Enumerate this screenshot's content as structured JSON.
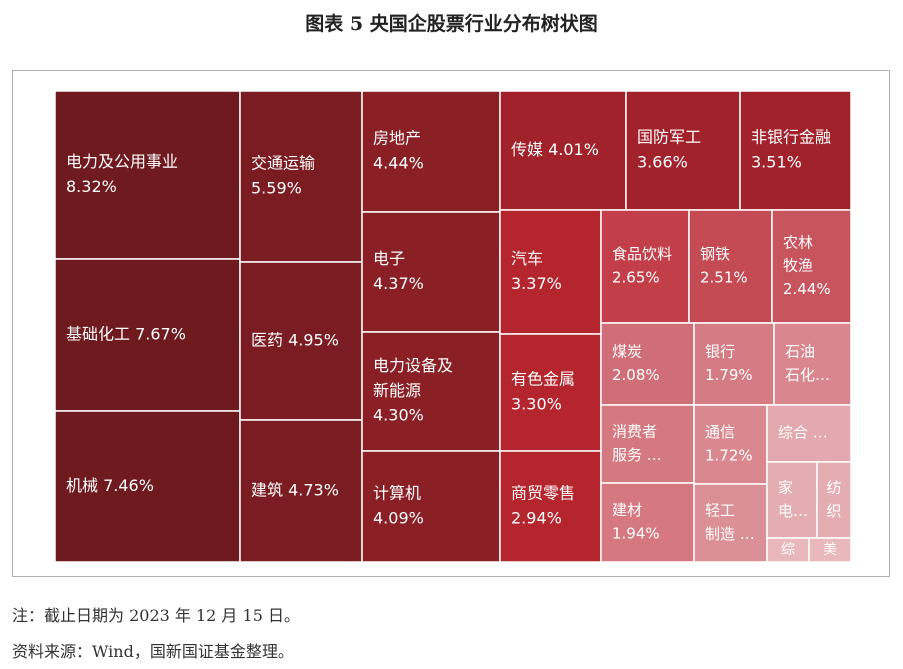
{
  "title": "图表 5  央国企股票行业分布树状图",
  "notes": {
    "note": "注：截止日期为 2023 年 12 月 15 日。",
    "source": "资料来源：Wind，国新国证基金整理。"
  },
  "chart_data": {
    "type": "treemap",
    "unit": "%",
    "items": [
      {
        "name": "电力及公用事业",
        "value": 8.32,
        "lines": [
          "电力及公用事业",
          "8.32%"
        ],
        "color": "#6e1a1e"
      },
      {
        "name": "基础化工",
        "value": 7.67,
        "lines": [
          "基础化工 7.67%"
        ],
        "color": "#6e1a1e"
      },
      {
        "name": "机械",
        "value": 7.46,
        "lines": [
          "机械 7.46%"
        ],
        "color": "#6e1a1e"
      },
      {
        "name": "交通运输",
        "value": 5.59,
        "lines": [
          "交通运输",
          "5.59%"
        ],
        "color": "#7a1c21"
      },
      {
        "name": "医药",
        "value": 4.95,
        "lines": [
          "医药 4.95%"
        ],
        "color": "#7a1c21"
      },
      {
        "name": "建筑",
        "value": 4.73,
        "lines": [
          "建筑 4.73%"
        ],
        "color": "#7a1c21"
      },
      {
        "name": "房地产",
        "value": 4.44,
        "lines": [
          "房地产",
          "4.44%"
        ],
        "color": "#8a1f25"
      },
      {
        "name": "电子",
        "value": 4.37,
        "lines": [
          "电子",
          "4.37%"
        ],
        "color": "#8a1f25"
      },
      {
        "name": "电力设备及新能源",
        "value": 4.3,
        "lines": [
          "电力设备及",
          "新能源",
          "4.30%"
        ],
        "color": "#8a1f25"
      },
      {
        "name": "计算机",
        "value": 4.09,
        "lines": [
          "计算机",
          "4.09%"
        ],
        "color": "#8a1f25"
      },
      {
        "name": "传媒",
        "value": 4.01,
        "lines": [
          "传媒 4.01%"
        ],
        "color": "#a1222a"
      },
      {
        "name": "国防军工",
        "value": 3.66,
        "lines": [
          "国防军工",
          "3.66%"
        ],
        "color": "#a1222a"
      },
      {
        "name": "非银行金融",
        "value": 3.51,
        "lines": [
          "非银行金融",
          "3.51%"
        ],
        "color": "#a1222a"
      },
      {
        "name": "汽车",
        "value": 3.37,
        "lines": [
          "汽车",
          "3.37%"
        ],
        "color": "#b4252e"
      },
      {
        "name": "有色金属",
        "value": 3.3,
        "lines": [
          "有色金属",
          "3.30%"
        ],
        "color": "#b4252e"
      },
      {
        "name": "商贸零售",
        "value": 2.94,
        "lines": [
          "商贸零售",
          "2.94%"
        ],
        "color": "#b4252e"
      },
      {
        "name": "食品饮料",
        "value": 2.65,
        "lines": [
          "食品饮料",
          "2.65%"
        ],
        "color": "#c23f49"
      },
      {
        "name": "钢铁",
        "value": 2.51,
        "lines": [
          "钢铁",
          "2.51%"
        ],
        "color": "#c44a54"
      },
      {
        "name": "农林牧渔",
        "value": 2.44,
        "lines": [
          "农林",
          "牧渔",
          "2.44%"
        ],
        "color": "#c8545e"
      },
      {
        "name": "煤炭",
        "value": 2.08,
        "lines": [
          "煤炭",
          "2.08%"
        ],
        "color": "#d06e77"
      },
      {
        "name": "银行",
        "value": 1.79,
        "lines": [
          "银行",
          "1.79%"
        ],
        "color": "#d57b83"
      },
      {
        "name": "石油石化",
        "value": null,
        "lines": [
          "石油",
          "石化…"
        ],
        "color": "#d9868e"
      },
      {
        "name": "消费者服务",
        "value": null,
        "lines": [
          "消费者",
          "服务 …"
        ],
        "color": "#d57980"
      },
      {
        "name": "通信",
        "value": 1.72,
        "lines": [
          "通信",
          "1.72%"
        ],
        "color": "#d98890"
      },
      {
        "name": "综合",
        "value": null,
        "lines": [
          "综合 …"
        ],
        "color": "#e3a9ae"
      },
      {
        "name": "建材",
        "value": 1.94,
        "lines": [
          "建材",
          "1.94%"
        ],
        "color": "#d5787f"
      },
      {
        "name": "轻工制造",
        "value": null,
        "lines": [
          "轻工",
          "制造 …"
        ],
        "color": "#db8f96"
      },
      {
        "name": "家电",
        "value": null,
        "lines": [
          "家",
          "电…"
        ],
        "color": "#e4adb2"
      },
      {
        "name": "纺织",
        "value": null,
        "lines": [
          "纺",
          "织"
        ],
        "color": "#e4adb2"
      },
      {
        "name": "综",
        "value": null,
        "lines": [
          "综"
        ],
        "color": "#e8b8bc"
      },
      {
        "name": "美",
        "value": null,
        "lines": [
          "美"
        ],
        "color": "#e8b8bc"
      }
    ]
  }
}
